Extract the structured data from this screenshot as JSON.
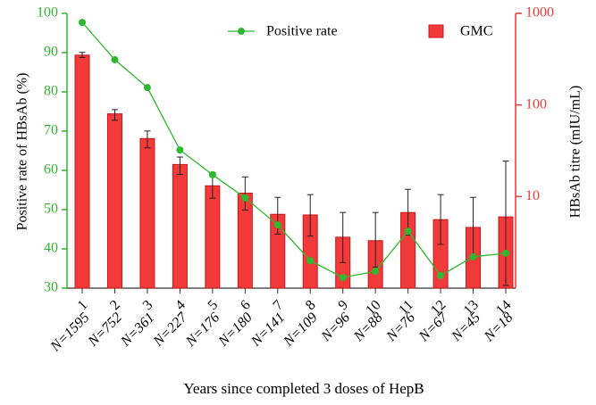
{
  "chart_data": {
    "type": "bar_line_dual",
    "categories": [
      "1",
      "2",
      "3",
      "4",
      "5",
      "6",
      "7",
      "8",
      "9",
      "10",
      "11",
      "12",
      "13",
      "14"
    ],
    "n_labels": [
      "N=1595",
      "N=752",
      "N=361",
      "N=227",
      "N=176",
      "N=180",
      "N=141",
      "N=109",
      "N=96",
      "N=88",
      "N=76",
      "N=67",
      "N=45",
      "N=18"
    ],
    "xlabel": "Years since completed 3 doses of HepB",
    "ylabel": "Positive rate of HBsAb (%)",
    "y2label": "HBsAb titre (mIU/mL)",
    "ylim": [
      30,
      100
    ],
    "yticks": [
      30,
      40,
      50,
      60,
      70,
      80,
      90,
      100
    ],
    "y2lim": [
      1,
      1000
    ],
    "y2ticks": [
      10,
      100,
      1000
    ],
    "y2scale": "log",
    "series": [
      {
        "name": "Positive rate",
        "type": "line",
        "color": "#2db82d",
        "values": [
          97.7,
          88.2,
          81.1,
          65.2,
          58.9,
          53,
          46.1,
          37,
          32.7,
          34.3,
          44.5,
          33.2,
          38,
          38.9
        ]
      },
      {
        "name": "GMC",
        "type": "bar",
        "axis": "y2",
        "color": "#f23a3a",
        "values": [
          350,
          80,
          43,
          22.4,
          13.1,
          10.9,
          6.4,
          6.3,
          3.6,
          3.3,
          6.7,
          5.6,
          4.6,
          6.0
        ],
        "ci_low": [
          330,
          68,
          34,
          17.5,
          9.6,
          7.1,
          3.9,
          3.7,
          1.9,
          1.7,
          3.8,
          3.0,
          2.1,
          1.07
        ],
        "ci_high": [
          375,
          89,
          52,
          27,
          18.3,
          16.4,
          9.8,
          10.5,
          6.7,
          6.7,
          12,
          10.5,
          9.8,
          24.4
        ]
      }
    ]
  }
}
